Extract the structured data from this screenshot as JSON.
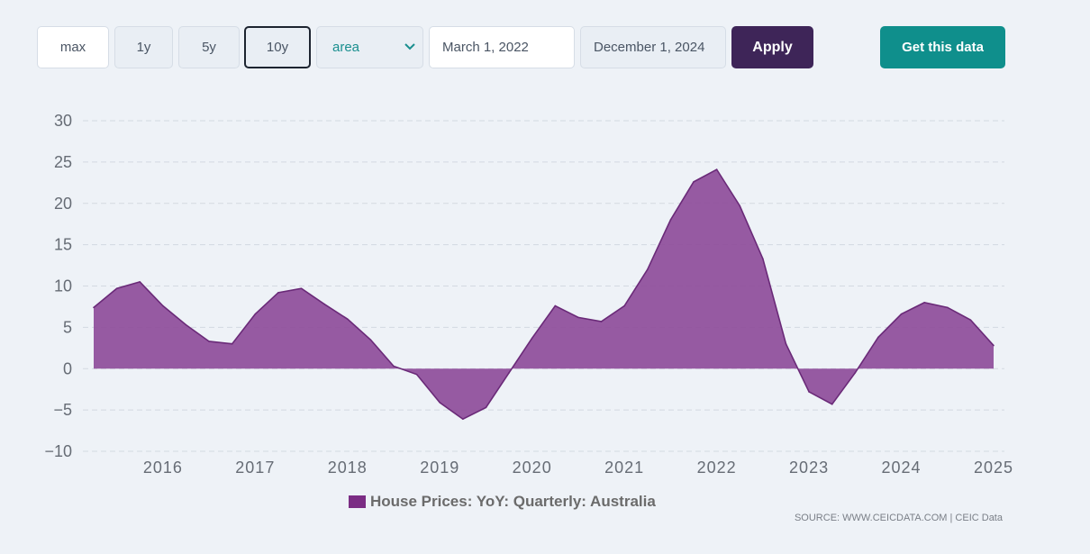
{
  "toolbar": {
    "range_buttons": [
      "max",
      "1y",
      "5y",
      "10y"
    ],
    "active_range": "10y",
    "chart_type_selected": "area",
    "start_date": "March 1, 2022",
    "end_date": "December 1, 2024",
    "apply_label": "Apply",
    "get_data_label": "Get this data"
  },
  "colors": {
    "area_fill": "#8e4d9a",
    "area_line": "#6a2a78",
    "legend_swatch": "#7b2d84",
    "apply_bg": "#3e2558",
    "get_data_bg": "#0f8f8c"
  },
  "legend": {
    "label": "House Prices: YoY: Quarterly: Australia"
  },
  "source": {
    "text": "SOURCE: WWW.CEICDATA.COM | CEIC Data"
  },
  "chart_data": {
    "type": "area",
    "title": "",
    "xlabel": "",
    "ylabel": "",
    "ylim": [
      -10,
      30
    ],
    "yticks": [
      30,
      25,
      20,
      15,
      10,
      5,
      0,
      -5,
      -10
    ],
    "xticks": [
      "2016",
      "2017",
      "2018",
      "2019",
      "2020",
      "2021",
      "2022",
      "2023",
      "2024",
      "2025"
    ],
    "grid": true,
    "legend_position": "bottom",
    "series": [
      {
        "name": "House Prices: YoY: Quarterly: Australia",
        "x": [
          "2015-03",
          "2015-06",
          "2015-09",
          "2015-12",
          "2016-03",
          "2016-06",
          "2016-09",
          "2016-12",
          "2017-03",
          "2017-06",
          "2017-09",
          "2017-12",
          "2018-03",
          "2018-06",
          "2018-09",
          "2018-12",
          "2019-03",
          "2019-06",
          "2019-09",
          "2019-12",
          "2020-03",
          "2020-06",
          "2020-09",
          "2020-12",
          "2021-03",
          "2021-06",
          "2021-09",
          "2021-12",
          "2022-03",
          "2022-06",
          "2022-09",
          "2022-12",
          "2023-03",
          "2023-06",
          "2023-09",
          "2023-12",
          "2024-03",
          "2024-06",
          "2024-09",
          "2024-12"
        ],
        "values": [
          7.4,
          9.7,
          10.5,
          7.6,
          5.3,
          3.3,
          3.0,
          6.6,
          9.2,
          9.7,
          7.8,
          6.0,
          3.5,
          0.3,
          -0.7,
          -4.1,
          -6.1,
          -4.7,
          -0.5,
          3.7,
          7.6,
          6.2,
          5.7,
          7.6,
          12.0,
          18.0,
          22.6,
          24.1,
          19.7,
          13.3,
          3.0,
          -2.8,
          -4.3,
          -0.5,
          3.8,
          6.6,
          8.0,
          7.4,
          5.9,
          2.8
        ]
      }
    ]
  }
}
